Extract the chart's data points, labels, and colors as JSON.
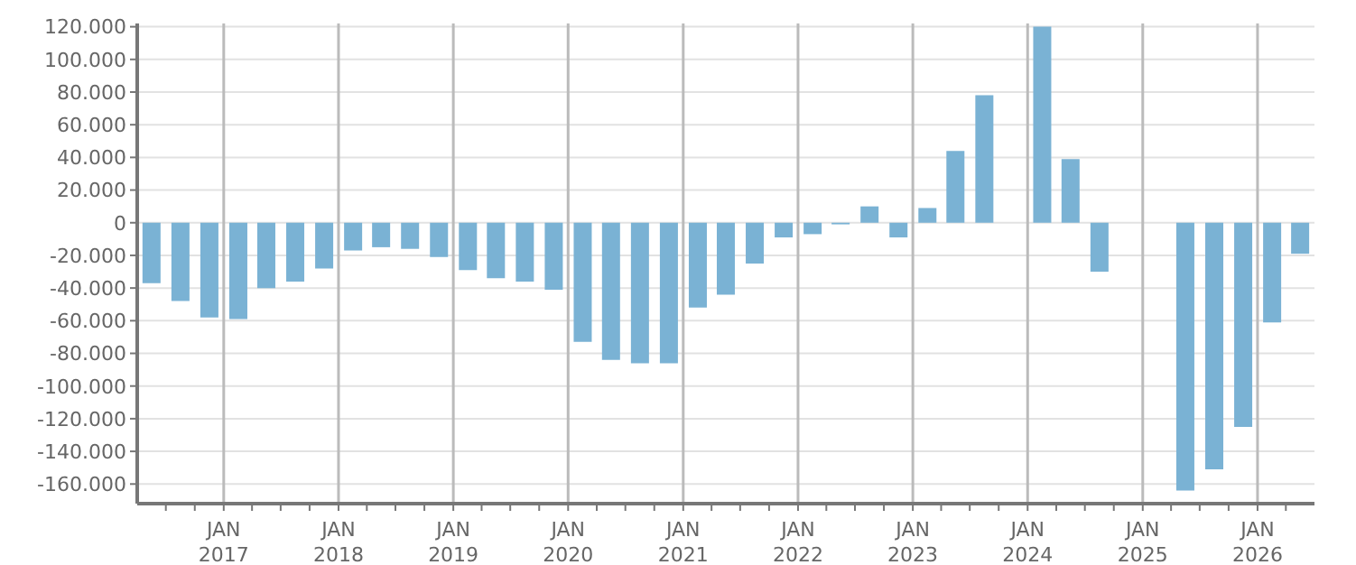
{
  "chart_data": {
    "type": "bar",
    "color": "#7ab2d4",
    "x": [
      "2016-05-15",
      "2016-08-15",
      "2016-11-15",
      "2017-02-15",
      "2017-05-15",
      "2017-08-15",
      "2017-11-15",
      "2018-02-15",
      "2018-05-15",
      "2018-08-15",
      "2018-11-15",
      "2019-02-15",
      "2019-05-15",
      "2019-08-15",
      "2019-11-15",
      "2020-02-15",
      "2020-05-15",
      "2020-08-15",
      "2020-11-15",
      "2021-02-15",
      "2021-05-15",
      "2021-08-15",
      "2021-11-15",
      "2022-02-15",
      "2022-05-15",
      "2022-08-15",
      "2022-11-15",
      "2023-02-15",
      "2023-05-15",
      "2023-08-15",
      "2023-11-15",
      "2024-02-15",
      "2024-05-15",
      "2024-08-15",
      "2024-11-15",
      "2025-02-15",
      "2025-05-15",
      "2025-08-15",
      "2025-11-15",
      "2026-02-15",
      "2026-05-15"
    ],
    "values": [
      -37000,
      -48000,
      -58000,
      -59000,
      -40000,
      -36000,
      -28000,
      -17000,
      -15000,
      -16000,
      -21000,
      -29000,
      -34000,
      -36000,
      -41000,
      -73000,
      -84000,
      -86000,
      -86000,
      -52000,
      -44000,
      -25000,
      -9000,
      -7000,
      -1000,
      10000,
      -9000,
      9000,
      44000,
      78000,
      null,
      120000,
      39000,
      -30000,
      null,
      null,
      -164000,
      -151000,
      -125000,
      -61000,
      -19000
    ],
    "xlim": [
      "2016-04-01",
      "2026-07-01"
    ],
    "xticks": [
      {
        "value": "2016-07-01",
        "label": null
      },
      {
        "value": "2016-10-01",
        "label": null
      },
      {
        "value": "2017-01-01",
        "label": "JAN\n2017"
      },
      {
        "value": "2017-04-01",
        "label": null
      },
      {
        "value": "2017-07-01",
        "label": null
      },
      {
        "value": "2017-10-01",
        "label": null
      },
      {
        "value": "2018-01-01",
        "label": "JAN\n2018"
      },
      {
        "value": "2018-04-01",
        "label": null
      },
      {
        "value": "2018-07-01",
        "label": null
      },
      {
        "value": "2018-10-01",
        "label": null
      },
      {
        "value": "2019-01-01",
        "label": "JAN\n2019"
      },
      {
        "value": "2019-04-01",
        "label": null
      },
      {
        "value": "2019-07-01",
        "label": null
      },
      {
        "value": "2019-10-01",
        "label": null
      },
      {
        "value": "2020-01-01",
        "label": "JAN\n2020"
      },
      {
        "value": "2020-04-01",
        "label": null
      },
      {
        "value": "2020-07-01",
        "label": null
      },
      {
        "value": "2020-10-01",
        "label": null
      },
      {
        "value": "2021-01-01",
        "label": "JAN\n2021"
      },
      {
        "value": "2021-04-01",
        "label": null
      },
      {
        "value": "2021-07-01",
        "label": null
      },
      {
        "value": "2021-10-01",
        "label": null
      },
      {
        "value": "2022-01-01",
        "label": "JAN\n2022"
      },
      {
        "value": "2022-04-01",
        "label": null
      },
      {
        "value": "2022-07-01",
        "label": null
      },
      {
        "value": "2022-10-01",
        "label": null
      },
      {
        "value": "2023-01-01",
        "label": "JAN\n2023"
      },
      {
        "value": "2023-04-01",
        "label": null
      },
      {
        "value": "2023-07-01",
        "label": null
      },
      {
        "value": "2023-10-01",
        "label": null
      },
      {
        "value": "2024-01-01",
        "label": "JAN\n2024"
      },
      {
        "value": "2024-04-01",
        "label": null
      },
      {
        "value": "2024-07-01",
        "label": null
      },
      {
        "value": "2024-10-01",
        "label": null
      },
      {
        "value": "2025-01-01",
        "label": "JAN\n2025"
      },
      {
        "value": "2025-04-01",
        "label": null
      },
      {
        "value": "2025-07-01",
        "label": null
      },
      {
        "value": "2025-10-01",
        "label": null
      },
      {
        "value": "2026-01-01",
        "label": "JAN\n2026"
      },
      {
        "value": "2026-04-01",
        "label": null
      }
    ],
    "ylim": [
      -172000,
      122000
    ],
    "yticks": [
      {
        "value": -160000,
        "label": "-160.000"
      },
      {
        "value": -140000,
        "label": "-140.000"
      },
      {
        "value": -120000,
        "label": "-120.000"
      },
      {
        "value": -100000,
        "label": "-100.000"
      },
      {
        "value": -80000,
        "label": "-80.000"
      },
      {
        "value": -60000,
        "label": "-60.000"
      },
      {
        "value": -40000,
        "label": "-40.000"
      },
      {
        "value": -20000,
        "label": "-20.000"
      },
      {
        "value": 0,
        "label": "0"
      },
      {
        "value": 20000,
        "label": "20.000"
      },
      {
        "value": 40000,
        "label": "40.000"
      },
      {
        "value": 60000,
        "label": "60.000"
      },
      {
        "value": 80000,
        "label": "80.000"
      },
      {
        "value": 100000,
        "label": "100.000"
      },
      {
        "value": 120000,
        "label": "120.000"
      }
    ],
    "grid": true
  }
}
